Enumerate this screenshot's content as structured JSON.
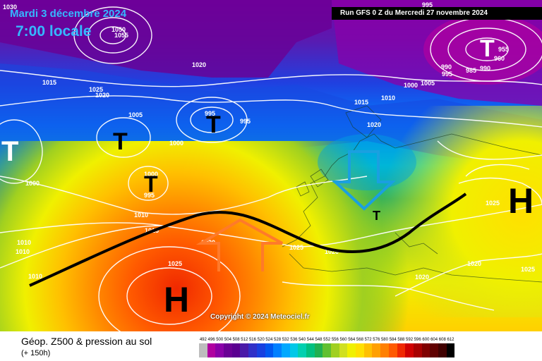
{
  "header": {
    "date": "Mardi 3 décembre 2024",
    "time": "7:00 locale",
    "run": "Run GFS 0 Z du Mercredi 27 novembre 2024"
  },
  "copyright": "Copyright © 2024 Meteociel.fr",
  "footer": {
    "title": "Géop. Z500 & pression au sol",
    "subtitle": "(+ 150h)"
  },
  "legend": {
    "values": [
      "492",
      "496",
      "500",
      "504",
      "508",
      "512",
      "516",
      "520",
      "524",
      "528",
      "532",
      "536",
      "540",
      "544",
      "548",
      "552",
      "556",
      "560",
      "564",
      "568",
      "572",
      "576",
      "580",
      "584",
      "588",
      "592",
      "596",
      "600",
      "604",
      "608",
      "612"
    ],
    "colors": [
      "#bdbdbd",
      "#b000a0",
      "#8a00a8",
      "#6a0095",
      "#5a0090",
      "#4a1aa8",
      "#3030c8",
      "#1840e0",
      "#0058f0",
      "#0080ff",
      "#00a8ff",
      "#00c8e8",
      "#00d0b0",
      "#00c080",
      "#20b050",
      "#60c030",
      "#a0d020",
      "#d0e020",
      "#f0f000",
      "#ffe000",
      "#ffc000",
      "#ffa000",
      "#ff8000",
      "#ff5a00",
      "#f02800",
      "#d00000",
      "#a80000",
      "#800000",
      "#600000",
      "#400000",
      "#000000"
    ]
  },
  "pressure_systems": {
    "high": "H",
    "low": "T"
  },
  "isobar_labels": [
    "1030",
    "1050",
    "1055",
    "1020",
    "1025",
    "1020",
    "1015",
    "1005",
    "995",
    "1000",
    "995",
    "1000",
    "995",
    "1000",
    "1010",
    "1015",
    "1010",
    "1010",
    "1010",
    "1025",
    "1020",
    "1025",
    "1020",
    "1020",
    "1015",
    "1020",
    "1010",
    "1000",
    "1005",
    "995",
    "990",
    "985",
    "955",
    "960",
    "990",
    "995",
    "1025",
    "1020",
    "1025"
  ],
  "colors": {
    "date_text": "#35b8ff",
    "trough_line": "#000000",
    "arrow_orange": "#ff7a2a",
    "arrow_blue": "#1aa0e0",
    "isobar": "#ffffff"
  }
}
